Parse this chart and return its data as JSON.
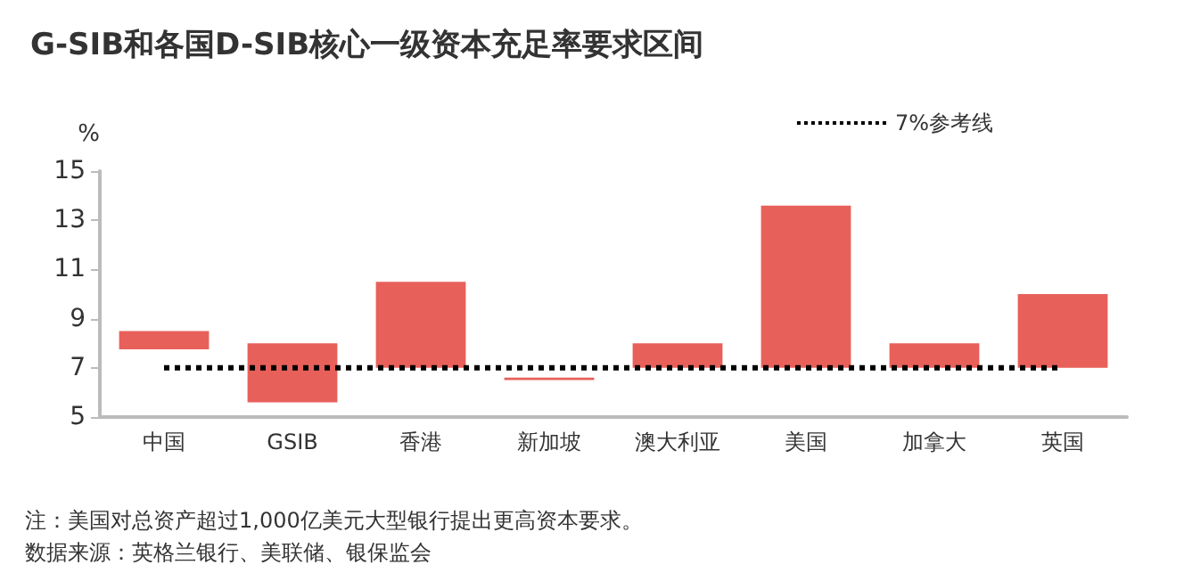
{
  "chart_data": {
    "type": "bar",
    "title": "G-SIB和各国D-SIB核心一级资本充足率要求区间",
    "ylabel": "%",
    "categories": [
      "中国",
      "GSIB",
      "香港",
      "新加坡",
      "澳大利亚",
      "美国",
      "加拿大",
      "英国"
    ],
    "series": [
      {
        "color": "#e8605a",
        "base": [
          7.75,
          5.6,
          7,
          6.5,
          7,
          7,
          7,
          7
        ],
        "values": [
          0.75,
          2.4,
          3.5,
          0.1,
          1,
          6.6,
          1,
          3
        ]
      },
      {
        "type": "line",
        "name": "7%参考线",
        "color": "#000000",
        "line_style": "dotted",
        "marker": "none",
        "values": [
          7,
          7,
          7,
          7,
          7,
          7,
          7,
          7
        ]
      }
    ],
    "ylim": [
      5,
      15
    ],
    "yticks": [
      5,
      7,
      9,
      11,
      13,
      15
    ],
    "grid": false,
    "legend": "top right",
    "annotations": [
      "注：美国对总资产超过1,000亿美元大型银行提出更高资本要求。",
      "数据来源：英格兰银行、美联储、银保监会"
    ]
  }
}
